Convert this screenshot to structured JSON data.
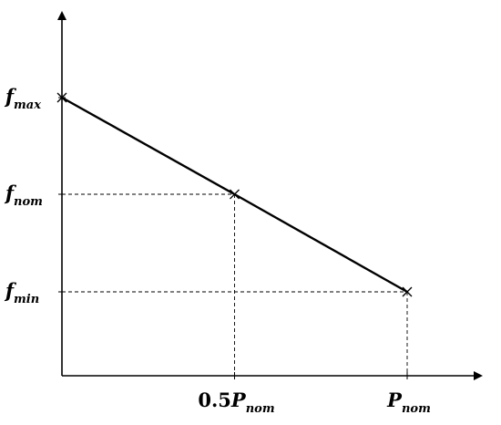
{
  "chart_data": {
    "type": "line",
    "title": "",
    "xlabel": "",
    "ylabel": "",
    "grid": false,
    "x_ticks": [
      {
        "value": 0.5,
        "coeff": "0.5",
        "symbol": "P",
        "sub": "nom"
      },
      {
        "value": 1.0,
        "coeff": "",
        "symbol": "P",
        "sub": "nom"
      }
    ],
    "y_ticks": [
      {
        "key": "max",
        "symbol": "f",
        "sub": "max"
      },
      {
        "key": "nom",
        "symbol": "f",
        "sub": "nom"
      },
      {
        "key": "min",
        "symbol": "f",
        "sub": "min"
      }
    ],
    "series": [
      {
        "points": [
          {
            "x": 0,
            "y": "max"
          },
          {
            "x": 0.5,
            "y": "nom"
          },
          {
            "x": 1.0,
            "y": "min"
          }
        ]
      }
    ],
    "line_color": "#000000",
    "guide_style": "dashed"
  }
}
